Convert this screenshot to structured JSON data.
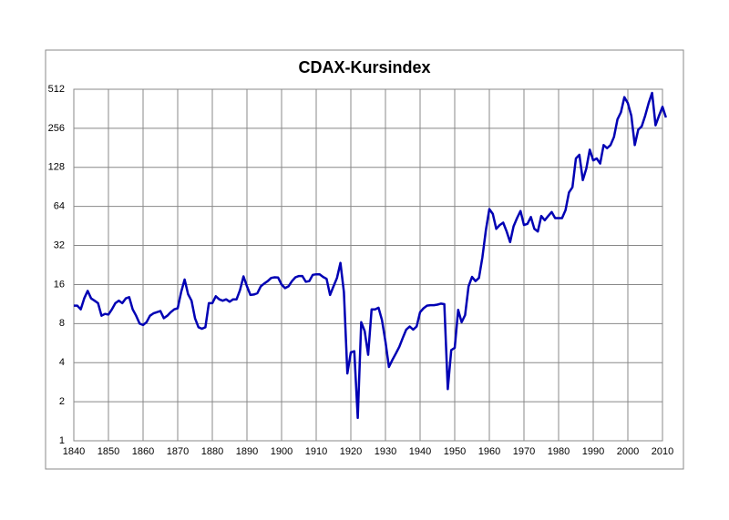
{
  "chart_data": {
    "type": "line",
    "title": "CDAX-Kursindex",
    "x": [
      1840,
      1841,
      1842,
      1843,
      1844,
      1845,
      1846,
      1847,
      1848,
      1849,
      1850,
      1851,
      1852,
      1853,
      1854,
      1855,
      1856,
      1857,
      1858,
      1859,
      1860,
      1861,
      1862,
      1863,
      1864,
      1865,
      1866,
      1867,
      1868,
      1869,
      1870,
      1871,
      1872,
      1873,
      1874,
      1875,
      1876,
      1877,
      1878,
      1879,
      1880,
      1881,
      1882,
      1883,
      1884,
      1885,
      1886,
      1887,
      1888,
      1889,
      1890,
      1891,
      1892,
      1893,
      1894,
      1895,
      1896,
      1897,
      1898,
      1899,
      1900,
      1901,
      1902,
      1903,
      1904,
      1905,
      1906,
      1907,
      1908,
      1909,
      1910,
      1911,
      1912,
      1913,
      1914,
      1915,
      1916,
      1917,
      1918,
      1919,
      1920,
      1921,
      1922,
      1923,
      1924,
      1925,
      1926,
      1927,
      1928,
      1929,
      1930,
      1931,
      1932,
      1933,
      1934,
      1935,
      1936,
      1937,
      1938,
      1939,
      1940,
      1941,
      1942,
      1943,
      1944,
      1945,
      1946,
      1947,
      1948,
      1949,
      1950,
      1951,
      1952,
      1953,
      1954,
      1955,
      1956,
      1957,
      1958,
      1959,
      1960,
      1961,
      1962,
      1963,
      1964,
      1965,
      1966,
      1967,
      1968,
      1969,
      1970,
      1971,
      1972,
      1973,
      1974,
      1975,
      1976,
      1977,
      1978,
      1979,
      1980,
      1981,
      1982,
      1983,
      1984,
      1985,
      1986,
      1987,
      1988,
      1989,
      1990,
      1991,
      1992,
      1993,
      1994,
      1995,
      1996,
      1997,
      1998,
      1999,
      2000,
      2001,
      2002,
      2003,
      2004,
      2005,
      2006,
      2007,
      2008,
      2009,
      2010,
      2011
    ],
    "series": [
      {
        "color": "#0000b4",
        "values": [
          11,
          11,
          10.3,
          12.5,
          14.3,
          12.5,
          12,
          11.5,
          9.2,
          9.5,
          9.4,
          10.3,
          11.5,
          12,
          11.5,
          12.5,
          12.8,
          10.3,
          9.2,
          8,
          7.8,
          8.2,
          9.2,
          9.6,
          9.8,
          10,
          8.8,
          9.2,
          9.8,
          10.3,
          10.5,
          14,
          17.5,
          13.5,
          12,
          8.8,
          7.5,
          7.3,
          7.5,
          11.5,
          11.5,
          13,
          12.3,
          12,
          12.3,
          11.8,
          12.3,
          12.3,
          14.5,
          18.5,
          15.5,
          13.3,
          13.4,
          13.7,
          15.5,
          16.3,
          17,
          18,
          18.2,
          18.1,
          16,
          15,
          15.5,
          17,
          18.2,
          18.6,
          18.6,
          16.8,
          17,
          19,
          19.2,
          19.2,
          18.3,
          17.7,
          13.3,
          15.5,
          18,
          23.5,
          14,
          3.3,
          4.8,
          4.9,
          1.5,
          8.2,
          7,
          4.6,
          10.3,
          10.3,
          10.6,
          8.5,
          5.8,
          3.7,
          4.2,
          4.7,
          5.3,
          6.2,
          7.2,
          7.6,
          7.2,
          7.6,
          9.8,
          10.5,
          11,
          11.1,
          11.1,
          11.2,
          11.4,
          11.3,
          2.5,
          5,
          5.2,
          10.2,
          8.2,
          9.3,
          15.5,
          18.3,
          17,
          18,
          26,
          42,
          61,
          56,
          43,
          46,
          48,
          41,
          34,
          45,
          52,
          59,
          46,
          47,
          53,
          43,
          41,
          54,
          50,
          54,
          58,
          52,
          52,
          52,
          60,
          82,
          90,
          150,
          160,
          102,
          125,
          175,
          145,
          150,
          137,
          190,
          180,
          190,
          220,
          300,
          340,
          445,
          400,
          320,
          190,
          250,
          265,
          320,
          400,
          480,
          270,
          320,
          375,
          310
        ]
      }
    ],
    "xlim": [
      1840,
      2010
    ],
    "xticks": [
      1840,
      1850,
      1860,
      1870,
      1880,
      1890,
      1900,
      1910,
      1920,
      1930,
      1940,
      1950,
      1960,
      1970,
      1980,
      1990,
      2000,
      2010
    ],
    "ylim": [
      1,
      512
    ],
    "yticks": [
      1,
      2,
      4,
      8,
      16,
      32,
      64,
      128,
      256,
      512
    ],
    "yscale": "log2",
    "grid": true
  }
}
